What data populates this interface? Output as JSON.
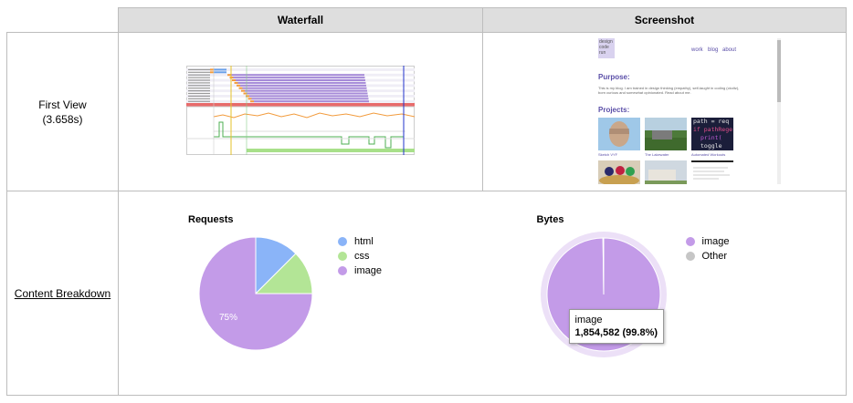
{
  "header": {
    "waterfall": "Waterfall",
    "screenshot": "Screenshot"
  },
  "first_view": {
    "label": "First View",
    "time": "(3.658s)"
  },
  "content_breakdown": {
    "label": "Content Breakdown"
  },
  "screenshot_page": {
    "logo": "design code run",
    "nav": [
      "work",
      "blog",
      "about"
    ],
    "purpose_heading": "Purpose:",
    "purpose_text": "This is my blog. I am trained in design thinking (empathy), self-taught in coding (ckoltz), born curious and somewhat opinionated. Read about me.",
    "projects_heading": "Projects:",
    "project_captions": [
      "Sketch VYF",
      "The Lakewater",
      "Automated Workouts"
    ],
    "code_lines": [
      "path = req",
      "if pathRege",
      "print(",
      "toggle"
    ]
  },
  "requests_chart": {
    "title": "Requests",
    "legend": [
      {
        "name": "html",
        "color": "#8ab4f8"
      },
      {
        "name": "css",
        "color": "#b3e596"
      },
      {
        "name": "image",
        "color": "#c39be8"
      }
    ],
    "slice_label": "75%"
  },
  "bytes_chart": {
    "title": "Bytes",
    "legend": [
      {
        "name": "image",
        "color": "#c39be8"
      },
      {
        "name": "Other",
        "color": "#c6c6c6"
      }
    ],
    "tooltip": {
      "name": "image",
      "value": "1,854,582 (99.8%)"
    }
  },
  "chart_data": [
    {
      "type": "pie",
      "title": "Requests",
      "categories": [
        "html",
        "css",
        "image"
      ],
      "values": [
        12.5,
        12.5,
        75
      ]
    },
    {
      "type": "pie",
      "title": "Bytes",
      "categories": [
        "image",
        "Other"
      ],
      "values": [
        99.8,
        0.2
      ]
    }
  ]
}
